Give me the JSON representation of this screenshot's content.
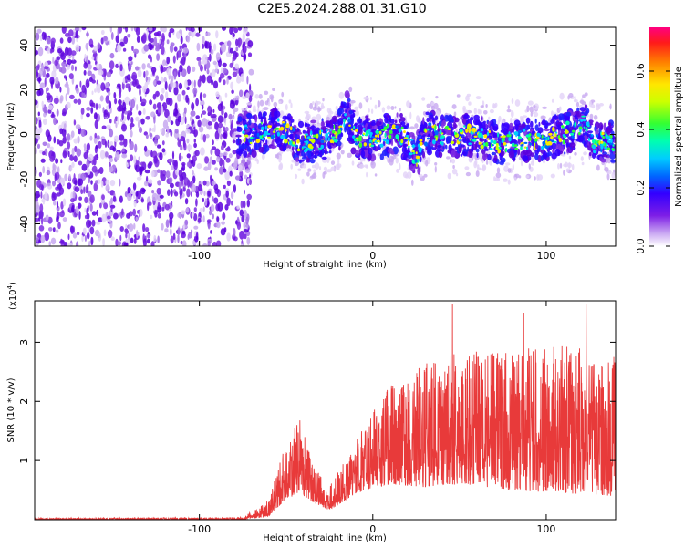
{
  "title": "C2E5.2024.288.01.31.G10",
  "chart_data": [
    {
      "type": "heatmap",
      "xlabel": "Height of straight line (km)",
      "ylabel": "Frequency (Hz)",
      "xlim": [
        -195,
        140
      ],
      "ylim": [
        -50,
        48
      ],
      "xticks": [
        -100,
        0,
        100
      ],
      "yticks": [
        -40,
        -20,
        0,
        20,
        40
      ],
      "noise_region_x": [
        -195,
        -70
      ],
      "signal_band_center_hz": [
        [
          -80,
          0
        ],
        [
          -70,
          0
        ],
        [
          -60,
          2
        ],
        [
          -55,
          3
        ],
        [
          -48,
          0
        ],
        [
          -42,
          -4
        ],
        [
          -35,
          -3
        ],
        [
          -28,
          -2
        ],
        [
          -22,
          0
        ],
        [
          -18,
          4
        ],
        [
          -15,
          12
        ],
        [
          -12,
          2
        ],
        [
          -8,
          -2
        ],
        [
          -3,
          -1
        ],
        [
          2,
          -3
        ],
        [
          8,
          0
        ],
        [
          14,
          1
        ],
        [
          18,
          -1
        ],
        [
          22,
          -5
        ],
        [
          25,
          -12
        ],
        [
          28,
          -3
        ],
        [
          32,
          1
        ],
        [
          38,
          0
        ],
        [
          45,
          -1
        ],
        [
          55,
          0
        ],
        [
          65,
          -2
        ],
        [
          75,
          -4
        ],
        [
          85,
          -2
        ],
        [
          95,
          -3
        ],
        [
          105,
          -1
        ],
        [
          115,
          2
        ],
        [
          122,
          5
        ],
        [
          128,
          -4
        ],
        [
          135,
          -3
        ],
        [
          140,
          -3
        ]
      ]
    },
    {
      "type": "line",
      "xlabel": "Height of straight line (km)",
      "ylabel": "SNR (10 * v/v)",
      "exponent_label": "(x10",
      "exponent_sup": "4",
      "exponent_close": ")",
      "xlim": [
        -195,
        140
      ],
      "ylim": [
        0,
        3.7
      ],
      "xticks": [
        -100,
        0,
        100
      ],
      "yticks": [
        1,
        2,
        3
      ],
      "series_color": "#e83a3a",
      "envelope": [
        {
          "x": -195,
          "base": 0.0,
          "amp": 0.02
        },
        {
          "x": -75,
          "base": 0.0,
          "amp": 0.03
        },
        {
          "x": -60,
          "base": 0.05,
          "amp": 0.2
        },
        {
          "x": -50,
          "base": 0.35,
          "amp": 0.7
        },
        {
          "x": -42,
          "base": 0.45,
          "amp": 0.9
        },
        {
          "x": -35,
          "base": 0.3,
          "amp": 0.5
        },
        {
          "x": -25,
          "base": 0.15,
          "amp": 0.3
        },
        {
          "x": -15,
          "base": 0.35,
          "amp": 0.5
        },
        {
          "x": -5,
          "base": 0.5,
          "amp": 0.8
        },
        {
          "x": 10,
          "base": 0.6,
          "amp": 1.2
        },
        {
          "x": 30,
          "base": 0.55,
          "amp": 1.5
        },
        {
          "x": 50,
          "base": 0.6,
          "amp": 1.6
        },
        {
          "x": 80,
          "base": 0.5,
          "amp": 1.7
        },
        {
          "x": 110,
          "base": 0.45,
          "amp": 1.8
        },
        {
          "x": 140,
          "base": 0.4,
          "amp": 1.7
        }
      ],
      "peaks": [
        {
          "x": -43,
          "y": 1.45
        },
        {
          "x": 30,
          "y": 2.5
        },
        {
          "x": 46,
          "y": 3.65
        },
        {
          "x": 87,
          "y": 3.5
        },
        {
          "x": 123,
          "y": 3.65
        },
        {
          "x": 139,
          "y": 2.75
        }
      ]
    }
  ],
  "colorbar": {
    "label": "Normalized spectral amplitude",
    "ticks": [
      "0.0",
      "0.2",
      "0.4",
      "0.6"
    ],
    "tick_values": [
      0.0,
      0.2,
      0.4,
      0.6
    ],
    "max": 0.75
  }
}
